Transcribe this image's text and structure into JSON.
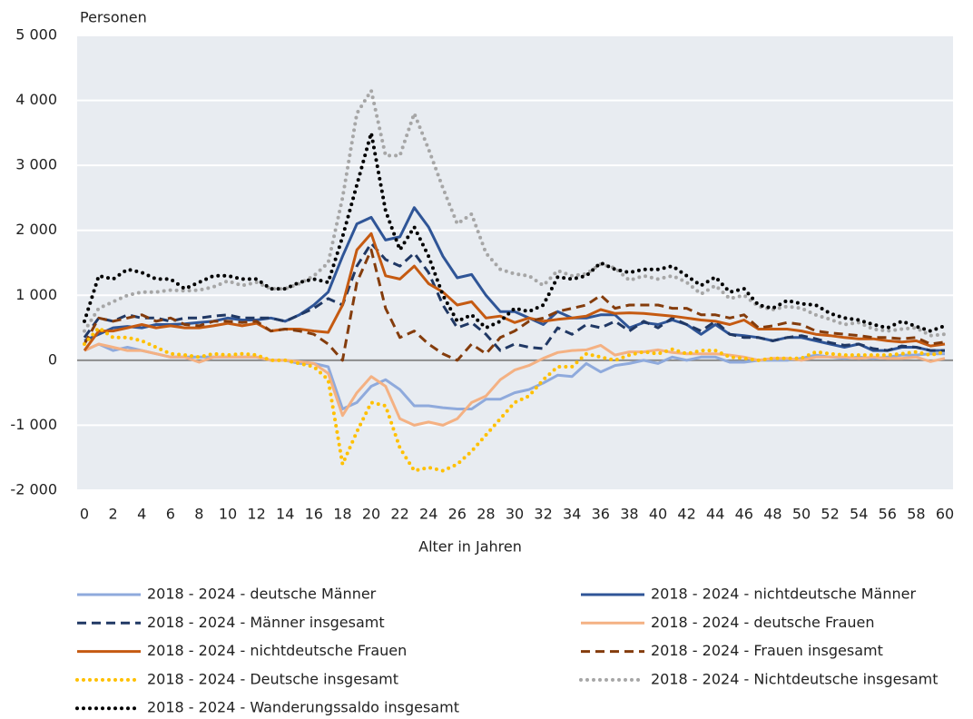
{
  "chart_data": {
    "type": "line",
    "y_axis_label": "Personen",
    "x_axis_label": "Alter in Jahren",
    "x": [
      0,
      1,
      2,
      3,
      4,
      5,
      6,
      7,
      8,
      9,
      10,
      11,
      12,
      13,
      14,
      15,
      16,
      17,
      18,
      19,
      20,
      21,
      22,
      23,
      24,
      25,
      26,
      27,
      28,
      29,
      30,
      31,
      32,
      33,
      34,
      35,
      36,
      37,
      38,
      39,
      40,
      41,
      42,
      43,
      44,
      45,
      46,
      47,
      48,
      49,
      50,
      51,
      52,
      53,
      54,
      55,
      56,
      57,
      58,
      59,
      60
    ],
    "xlim": [
      0,
      60
    ],
    "xticks": [
      0,
      2,
      4,
      6,
      8,
      10,
      12,
      14,
      16,
      18,
      20,
      22,
      24,
      26,
      28,
      30,
      32,
      34,
      36,
      38,
      40,
      42,
      44,
      46,
      48,
      50,
      52,
      54,
      56,
      58,
      60
    ],
    "ylim": [
      -2000,
      5000
    ],
    "yticks": [
      {
        "value": -2000,
        "label": "-2 000"
      },
      {
        "value": -1000,
        "label": "-1 000"
      },
      0,
      {
        "value": 1000,
        "label": "1 000"
      },
      {
        "value": 2000,
        "label": "2 000"
      },
      {
        "value": 3000,
        "label": "3 000"
      },
      {
        "value": 4000,
        "label": "4 000"
      },
      {
        "value": 5000,
        "label": "5 000"
      }
    ],
    "grid": true,
    "legend": "bottom",
    "series": [
      {
        "name": "2018 - 2024 - deutsche Männer",
        "color": "#8faadc",
        "style": "solid",
        "values": [
          150,
          250,
          150,
          200,
          150,
          100,
          50,
          50,
          50,
          50,
          50,
          50,
          50,
          0,
          0,
          -50,
          -50,
          -100,
          -750,
          -650,
          -400,
          -300,
          -450,
          -700,
          -700,
          -730,
          -750,
          -750,
          -600,
          -600,
          -500,
          -450,
          -350,
          -230,
          -250,
          -50,
          -180,
          -80,
          -50,
          0,
          -50,
          50,
          0,
          50,
          50,
          -30,
          -30,
          0,
          0,
          0,
          30,
          80,
          50,
          30,
          50,
          30,
          50,
          80,
          80,
          100,
          100
        ]
      },
      {
        "name": "2018 - 2024 - nichtdeutsche Männer",
        "color": "#2f5597",
        "style": "solid",
        "values": [
          300,
          400,
          500,
          520,
          500,
          550,
          550,
          560,
          580,
          600,
          650,
          620,
          620,
          650,
          600,
          700,
          850,
          1050,
          1600,
          2100,
          2200,
          1850,
          1900,
          2350,
          2050,
          1600,
          1270,
          1320,
          1000,
          750,
          750,
          650,
          550,
          750,
          650,
          650,
          700,
          700,
          500,
          580,
          550,
          620,
          550,
          400,
          550,
          400,
          380,
          350,
          300,
          350,
          350,
          300,
          250,
          200,
          250,
          150,
          150,
          200,
          200,
          150,
          150
        ]
      },
      {
        "name": "2018 - 2024 - Männer insgesamt",
        "color": "#203864",
        "style": "dashed",
        "values": [
          350,
          650,
          600,
          700,
          650,
          650,
          600,
          650,
          650,
          680,
          700,
          650,
          650,
          650,
          600,
          700,
          800,
          950,
          850,
          1450,
          1800,
          1550,
          1450,
          1650,
          1350,
          850,
          500,
          580,
          400,
          150,
          250,
          200,
          180,
          500,
          400,
          550,
          500,
          600,
          450,
          600,
          500,
          650,
          550,
          450,
          600,
          400,
          350,
          350,
          300,
          350,
          380,
          330,
          270,
          230,
          250,
          180,
          150,
          220,
          200,
          150,
          150
        ]
      },
      {
        "name": "2018 - 2024 - deutsche Frauen",
        "color": "#f4b183",
        "style": "solid",
        "values": [
          150,
          250,
          200,
          150,
          150,
          100,
          50,
          50,
          -30,
          50,
          50,
          50,
          50,
          0,
          0,
          -20,
          -50,
          -200,
          -850,
          -500,
          -250,
          -400,
          -900,
          -1000,
          -950,
          -1000,
          -900,
          -650,
          -550,
          -300,
          -150,
          -80,
          30,
          120,
          150,
          160,
          230,
          80,
          130,
          130,
          160,
          120,
          100,
          100,
          100,
          80,
          50,
          0,
          30,
          30,
          0,
          50,
          50,
          50,
          30,
          50,
          30,
          30,
          50,
          -20,
          30
        ]
      },
      {
        "name": "2018 - 2024 - nichtdeutsche Frauen",
        "color": "#c55a11",
        "style": "solid",
        "values": [
          150,
          450,
          450,
          500,
          550,
          500,
          530,
          500,
          500,
          530,
          570,
          530,
          570,
          450,
          480,
          480,
          450,
          430,
          850,
          1700,
          1950,
          1300,
          1250,
          1450,
          1180,
          1050,
          850,
          900,
          650,
          680,
          580,
          650,
          600,
          630,
          650,
          680,
          780,
          720,
          730,
          720,
          700,
          680,
          650,
          620,
          600,
          550,
          620,
          480,
          480,
          480,
          450,
          400,
          380,
          350,
          330,
          330,
          300,
          280,
          300,
          220,
          250
        ]
      },
      {
        "name": "2018 - 2024 - Frauen insgesamt",
        "color": "#843c0c",
        "style": "dashed",
        "values": [
          250,
          650,
          600,
          650,
          700,
          600,
          650,
          550,
          530,
          600,
          600,
          580,
          600,
          450,
          480,
          450,
          400,
          250,
          0,
          1200,
          1700,
          800,
          350,
          450,
          250,
          100,
          0,
          250,
          100,
          350,
          450,
          600,
          650,
          750,
          800,
          850,
          1000,
          800,
          850,
          850,
          850,
          800,
          800,
          700,
          700,
          650,
          700,
          500,
          530,
          580,
          550,
          450,
          420,
          400,
          380,
          350,
          350,
          330,
          350,
          250,
          280
        ]
      },
      {
        "name": "2018 - 2024 - Deutsche insgesamt",
        "color": "#ffc000",
        "style": "dotted",
        "values": [
          250,
          500,
          350,
          350,
          300,
          200,
          100,
          80,
          50,
          100,
          80,
          100,
          80,
          0,
          0,
          -50,
          -100,
          -300,
          -1600,
          -1100,
          -650,
          -700,
          -1350,
          -1700,
          -1650,
          -1700,
          -1600,
          -1400,
          -1150,
          -900,
          -650,
          -550,
          -300,
          -100,
          -100,
          100,
          50,
          0,
          80,
          130,
          100,
          170,
          100,
          150,
          150,
          50,
          30,
          0,
          30,
          30,
          30,
          130,
          100,
          80,
          80,
          80,
          80,
          100,
          130,
          80,
          130
        ]
      },
      {
        "name": "2018 - 2024 - Nichtdeutsche insgesamt",
        "color": "#a6a6a6",
        "style": "dotted",
        "values": [
          450,
          800,
          900,
          1000,
          1050,
          1050,
          1080,
          1070,
          1080,
          1130,
          1220,
          1150,
          1200,
          1100,
          1100,
          1180,
          1300,
          1500,
          2500,
          3800,
          4150,
          3150,
          3150,
          3800,
          3250,
          2650,
          2100,
          2250,
          1650,
          1400,
          1330,
          1300,
          1150,
          1380,
          1300,
          1330,
          1480,
          1420,
          1230,
          1300,
          1250,
          1300,
          1200,
          1020,
          1150,
          950,
          1000,
          830,
          780,
          830,
          800,
          700,
          630,
          550,
          580,
          480,
          450,
          480,
          500,
          380,
          400
        ]
      },
      {
        "name": "2018 - 2024 - Wanderungssaldo insgesamt",
        "color": "#000000",
        "style": "dotted",
        "values": [
          600,
          1300,
          1250,
          1400,
          1350,
          1250,
          1250,
          1100,
          1200,
          1300,
          1300,
          1250,
          1250,
          1100,
          1100,
          1200,
          1250,
          1200,
          1900,
          2700,
          3500,
          2300,
          1700,
          2050,
          1600,
          1000,
          600,
          700,
          500,
          600,
          800,
          750,
          850,
          1280,
          1250,
          1300,
          1500,
          1400,
          1350,
          1400,
          1400,
          1450,
          1300,
          1150,
          1280,
          1050,
          1100,
          850,
          800,
          920,
          870,
          850,
          720,
          650,
          620,
          550,
          500,
          600,
          520,
          450,
          530
        ]
      }
    ]
  }
}
